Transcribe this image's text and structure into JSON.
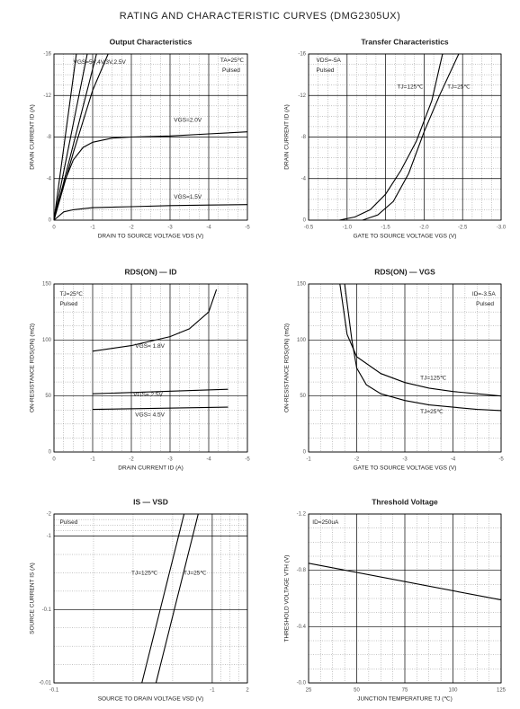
{
  "title": "RATING AND CHARACTERISTIC CURVES (DMG2305UX)",
  "chart_data": [
    {
      "type": "line",
      "title": "Output Characteristics",
      "xlabel": "DRAIN TO SOURCE VOLTAGE VDS (V)",
      "ylabel": "DRAIN CURRENT ID (A)",
      "xlim": [
        0,
        -5
      ],
      "xticks": [
        0,
        -1,
        -2,
        -3,
        -4,
        -5
      ],
      "ylim": [
        0,
        -16
      ],
      "yticks": [
        0,
        -4,
        -8,
        -12,
        -16
      ],
      "grid": true,
      "color": "#000000",
      "annotations": [
        "TA=25℃",
        "Pulsed",
        "VGS=5V,4V,3V,2.5V",
        "VGS=2.0V",
        "VGS=1.5V"
      ],
      "series": [
        {
          "x": [
            0,
            -0.58
          ],
          "values": [
            0,
            -16
          ]
        },
        {
          "x": [
            0,
            -0.86
          ],
          "values": [
            0,
            -16
          ]
        },
        {
          "x": [
            0,
            -1.1
          ],
          "values": [
            0,
            -16
          ]
        },
        {
          "x": [
            0,
            -0.5,
            -1,
            -1.4
          ],
          "values": [
            0,
            -6.5,
            -12.5,
            -16
          ]
        },
        {
          "x": [
            0,
            -0.25,
            -0.5,
            -0.75,
            -1,
            -1.5,
            -2,
            -3,
            -4,
            -5
          ],
          "values": [
            0,
            -3.5,
            -5.8,
            -7,
            -7.5,
            -7.9,
            -8,
            -8.1,
            -8.3,
            -8.5
          ]
        },
        {
          "x": [
            0,
            -0.25,
            -0.5,
            -1,
            -2,
            -3,
            -4,
            -5
          ],
          "values": [
            0,
            -0.8,
            -1,
            -1.2,
            -1.3,
            -1.4,
            -1.45,
            -1.5
          ]
        }
      ]
    },
    {
      "type": "line",
      "title": "Transfer Characteristics",
      "xlabel": "GATE TO SOURCE VOLTAGE VGS (V)",
      "ylabel": "DRAIN CURRENT ID (A)",
      "xlim": [
        -0.5,
        -3
      ],
      "xticks": [
        -0.5,
        {
          "value": -1,
          "label": "-1.0"
        },
        -1.5,
        {
          "value": -2,
          "label": "-2.0"
        },
        -2.5,
        {
          "value": -3,
          "label": "-3.0"
        }
      ],
      "ylim": [
        0,
        -16
      ],
      "yticks": [
        0,
        -4,
        -8,
        -12,
        -16
      ],
      "grid": true,
      "color": "#000000",
      "annotations": [
        "VDS=-5A",
        "Pulsed",
        "TJ=125℃",
        "TJ=25℃"
      ],
      "series": [
        {
          "x": [
            -0.9,
            -1.1,
            -1.3,
            -1.5,
            -1.7,
            -1.9,
            -2.1,
            -2.24
          ],
          "values": [
            0,
            -0.3,
            -1,
            -2.5,
            -4.8,
            -7.6,
            -11.5,
            -16
          ]
        },
        {
          "x": [
            -1.2,
            -1.4,
            -1.6,
            -1.8,
            -2,
            -2.2,
            -2.45
          ],
          "values": [
            0,
            -0.5,
            -1.8,
            -4.5,
            -8.5,
            -12,
            -16
          ]
        }
      ]
    },
    {
      "type": "line",
      "title": "RDS(ON) — ID",
      "xlabel": "DRAIN CURRENT ID (A)",
      "ylabel": "ON-RESISTANCE RDS(ON) (mΩ)",
      "xlim": [
        0,
        -5
      ],
      "xticks": [
        0,
        -1,
        -2,
        -3,
        -4,
        -5
      ],
      "ylim": [
        0,
        150
      ],
      "yticks": [
        0,
        50,
        100,
        150
      ],
      "grid": true,
      "color": "#000000",
      "annotations": [
        "TJ=25℃",
        "Pulsed",
        "VGS= 1.8V",
        "VGS= 2.5V",
        "VGS= 4.5V"
      ],
      "series": [
        {
          "x": [
            -1,
            -2,
            -3,
            -3.5,
            -4,
            -4.2
          ],
          "values": [
            90,
            95,
            103,
            110,
            125,
            145
          ]
        },
        {
          "x": [
            -1,
            -4.5
          ],
          "values": [
            52,
            56
          ]
        },
        {
          "x": [
            -1,
            -4.5
          ],
          "values": [
            38,
            40
          ]
        }
      ]
    },
    {
      "type": "line",
      "title": "RDS(ON) — VGS",
      "xlabel": "GATE TO SOURCE VOLTAGE VGS (V)",
      "ylabel": "ON-RESISTANCE RDS(ON) (mΩ)",
      "xlim": [
        -1,
        -5
      ],
      "xticks": [
        -1,
        -2,
        -3,
        -4,
        -5
      ],
      "ylim": [
        0,
        150
      ],
      "yticks": [
        0,
        50,
        100,
        150
      ],
      "grid": true,
      "color": "#000000",
      "annotations": [
        "ID=-3.5A",
        "Pulsed",
        "TJ=125℃",
        "TJ=25℃"
      ],
      "series": [
        {
          "x": [
            -1.65,
            -1.8,
            -2,
            -2.5,
            -3,
            -3.5,
            -4,
            -4.5,
            -5
          ],
          "values": [
            150,
            105,
            85,
            70,
            62,
            57,
            54,
            52,
            50
          ]
        },
        {
          "x": [
            -1.75,
            -1.9,
            -2,
            -2.2,
            -2.5,
            -3,
            -3.5,
            -4,
            -4.5,
            -5
          ],
          "values": [
            150,
            100,
            75,
            60,
            52,
            46,
            42,
            40,
            38,
            37
          ]
        }
      ]
    },
    {
      "type": "line",
      "title": "IS — VSD",
      "xlabel": "SOURCE TO DRAIN VOLTAGE VSD (V)",
      "ylabel": "SOURCE CURRENT IS (A)",
      "xlim": [
        -0.1,
        -1.2
      ],
      "xticks": [
        -0.1,
        -1,
        {
          "value": -1.2,
          "label": "2"
        }
      ],
      "ylim": [
        -0.01,
        -2
      ],
      "yticks": [
        -0.01,
        -0.1,
        -1,
        -2
      ],
      "yscale": "log",
      "grid": true,
      "color": "#000000",
      "annotations": [
        "Pulsed",
        "TJ=125℃",
        "TJ=25℃"
      ],
      "series": [
        {
          "x": [
            -0.6,
            -0.84
          ],
          "values": [
            -0.01,
            -2
          ]
        },
        {
          "x": [
            -0.68,
            -0.92
          ],
          "values": [
            -0.01,
            -2
          ]
        }
      ]
    },
    {
      "type": "line",
      "title": "Threshold Voltage",
      "xlabel": "JUNCTION TEMPERATURE TJ (℃)",
      "ylabel": "THRESHOLD VOLTAGE VTH (V)",
      "xlim": [
        25,
        125
      ],
      "xticks": [
        25,
        50,
        75,
        100,
        125
      ],
      "ylim": [
        0,
        -1.2
      ],
      "yticks": [
        {
          "value": 0,
          "label": "-0.0"
        },
        -0.4,
        -0.8,
        -1.2
      ],
      "grid": true,
      "color": "#000000",
      "annotations": [
        "ID=250uA"
      ],
      "series": [
        {
          "x": [
            25,
            125
          ],
          "values": [
            -0.85,
            -0.59
          ]
        }
      ]
    }
  ]
}
